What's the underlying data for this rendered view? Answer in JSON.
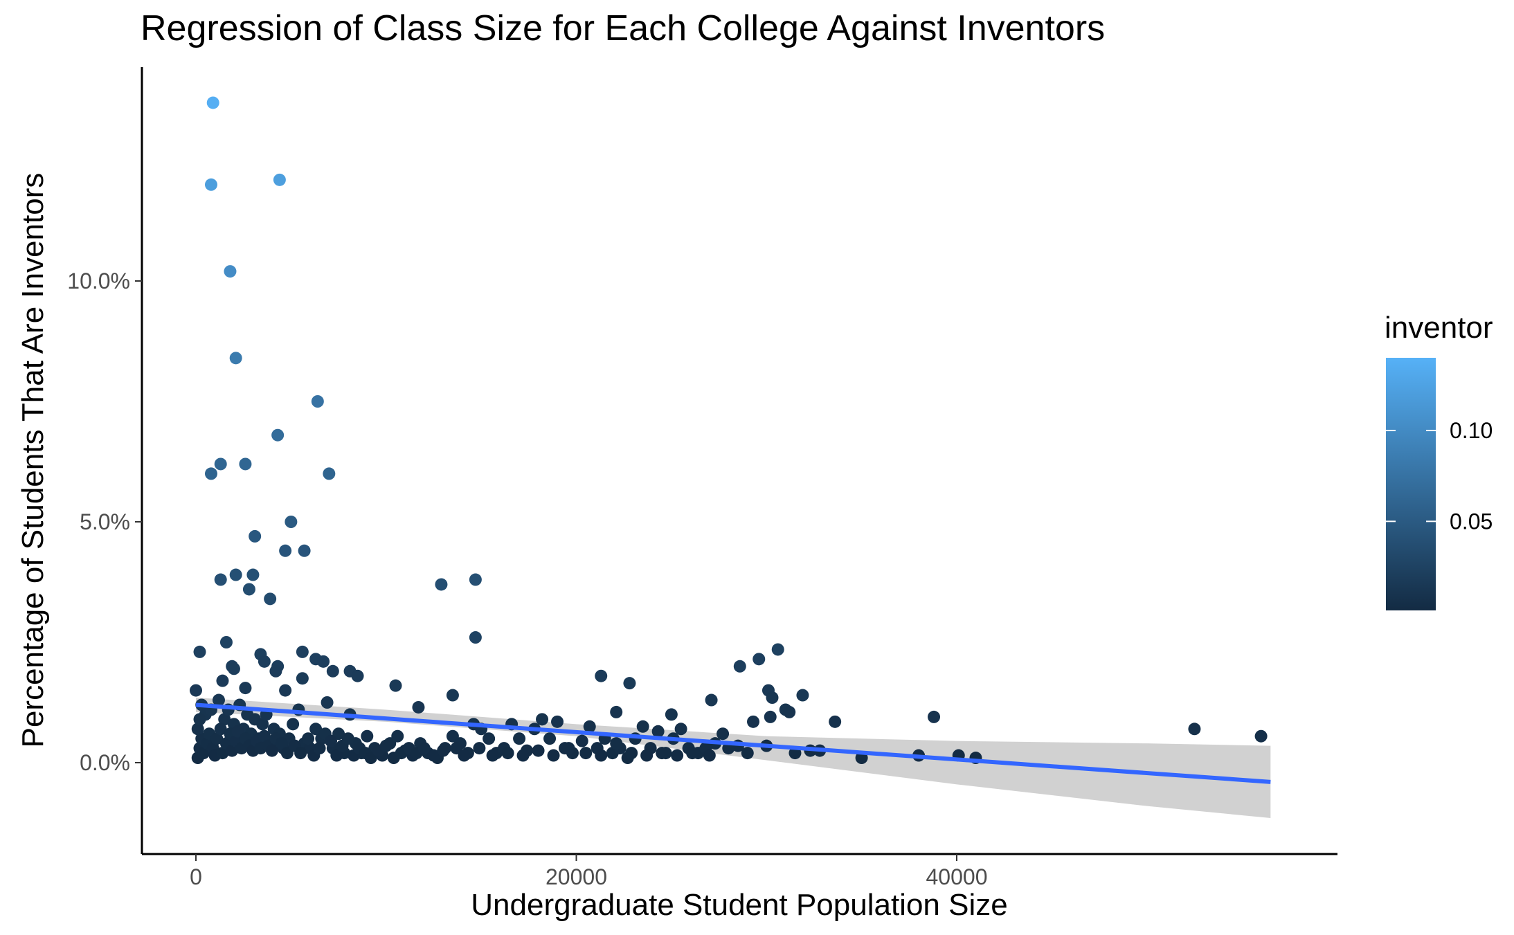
{
  "chart_data": {
    "type": "scatter",
    "title": "Regression of Class Size for Each College Against Inventors",
    "xlabel": "Undergraduate Student Population Size",
    "ylabel": "Percentage of Students That Are Inventors",
    "xlim": [
      -3000,
      59000
    ],
    "ylim": [
      -1.85,
      14.3
    ],
    "x_ticks": [
      {
        "value": 0,
        "label": "0"
      },
      {
        "value": 20000,
        "label": "20000"
      },
      {
        "value": 40000,
        "label": "40000"
      }
    ],
    "y_ticks": [
      {
        "value": 0,
        "label": "0.0%"
      },
      {
        "value": 5,
        "label": "5.0%"
      },
      {
        "value": 10,
        "label": "10.0%"
      }
    ],
    "grid": false,
    "legend": {
      "title": "inventor",
      "placement": "right",
      "type": "continuous colorbar",
      "range": [
        0.001,
        0.14
      ],
      "ticks": [
        {
          "value": 0.05,
          "label": "0.05"
        },
        {
          "value": 0.1,
          "label": "0.10"
        }
      ],
      "color_low": "#132B43",
      "color_high": "#56B1F7"
    },
    "point_color_by": "y (as fraction = inventor)",
    "regression": {
      "method": "lm",
      "color": "#3366FF",
      "ribbon_color": "#cccccc",
      "line": [
        [
          0,
          1.2
        ],
        [
          56500,
          -0.4
        ]
      ],
      "ribbon_lower": [
        [
          0,
          1.05
        ],
        [
          10000,
          0.85
        ],
        [
          20000,
          0.55
        ],
        [
          30000,
          0.05
        ],
        [
          40000,
          -0.45
        ],
        [
          50000,
          -0.9
        ],
        [
          56500,
          -1.15
        ]
      ],
      "ribbon_upper": [
        [
          0,
          1.35
        ],
        [
          10000,
          1.1
        ],
        [
          20000,
          0.8
        ],
        [
          30000,
          0.55
        ],
        [
          40000,
          0.45
        ],
        [
          50000,
          0.4
        ],
        [
          56500,
          0.35
        ]
      ]
    },
    "points": [
      [
        900,
        13.7
      ],
      [
        800,
        12.0
      ],
      [
        4400,
        12.1
      ],
      [
        1800,
        10.2
      ],
      [
        2100,
        8.4
      ],
      [
        6400,
        7.5
      ],
      [
        4300,
        6.8
      ],
      [
        1300,
        6.2
      ],
      [
        800,
        6.0
      ],
      [
        2600,
        6.2
      ],
      [
        7000,
        6.0
      ],
      [
        5000,
        5.0
      ],
      [
        3100,
        4.7
      ],
      [
        4700,
        4.4
      ],
      [
        5700,
        4.4
      ],
      [
        2100,
        3.9
      ],
      [
        3000,
        3.9
      ],
      [
        1300,
        3.8
      ],
      [
        2800,
        3.6
      ],
      [
        3900,
        3.4
      ],
      [
        12900,
        3.7
      ],
      [
        14700,
        3.8
      ],
      [
        14700,
        2.6
      ],
      [
        200,
        2.3
      ],
      [
        1600,
        2.5
      ],
      [
        3400,
        2.25
      ],
      [
        5600,
        2.3
      ],
      [
        6300,
        2.15
      ],
      [
        6700,
        2.1
      ],
      [
        4300,
        2.0
      ],
      [
        1900,
        2.0
      ],
      [
        2000,
        1.95
      ],
      [
        3600,
        2.1
      ],
      [
        4200,
        1.9
      ],
      [
        5600,
        1.75
      ],
      [
        7200,
        1.9
      ],
      [
        8100,
        1.9
      ],
      [
        8500,
        1.8
      ],
      [
        10500,
        1.6
      ],
      [
        4700,
        1.5
      ],
      [
        13500,
        1.4
      ],
      [
        11700,
        1.15
      ],
      [
        2600,
        1.55
      ],
      [
        1400,
        1.7
      ],
      [
        21300,
        1.8
      ],
      [
        22800,
        1.65
      ],
      [
        28600,
        2.0
      ],
      [
        29600,
        2.15
      ],
      [
        30600,
        2.35
      ],
      [
        30100,
        1.5
      ],
      [
        30300,
        1.35
      ],
      [
        31900,
        1.4
      ],
      [
        27100,
        1.3
      ],
      [
        31000,
        1.1
      ],
      [
        31200,
        1.05
      ],
      [
        22100,
        1.05
      ],
      [
        25000,
        1.0
      ],
      [
        30200,
        0.95
      ],
      [
        29300,
        0.85
      ],
      [
        33600,
        0.85
      ],
      [
        38800,
        0.95
      ],
      [
        52500,
        0.7
      ],
      [
        56000,
        0.55
      ],
      [
        0,
        1.5
      ],
      [
        300,
        1.2
      ],
      [
        500,
        1.0
      ],
      [
        800,
        1.1
      ],
      [
        1200,
        1.3
      ],
      [
        1500,
        0.9
      ],
      [
        1700,
        1.1
      ],
      [
        2000,
        0.8
      ],
      [
        2300,
        1.2
      ],
      [
        2500,
        0.7
      ],
      [
        2700,
        1.0
      ],
      [
        2900,
        0.6
      ],
      [
        3100,
        0.9
      ],
      [
        3300,
        0.5
      ],
      [
        3500,
        0.8
      ],
      [
        3700,
        1.0
      ],
      [
        3900,
        0.4
      ],
      [
        4100,
        0.7
      ],
      [
        4400,
        0.6
      ],
      [
        4600,
        0.3
      ],
      [
        4900,
        0.5
      ],
      [
        5100,
        0.8
      ],
      [
        5400,
        1.1
      ],
      [
        5700,
        0.4
      ],
      [
        6000,
        0.3
      ],
      [
        6300,
        0.7
      ],
      [
        6600,
        0.5
      ],
      [
        6900,
        1.25
      ],
      [
        7200,
        0.3
      ],
      [
        7500,
        0.6
      ],
      [
        7800,
        0.2
      ],
      [
        8100,
        1.0
      ],
      [
        8400,
        0.4
      ],
      [
        8700,
        0.2
      ],
      [
        9000,
        0.55
      ],
      [
        9400,
        0.3
      ],
      [
        9800,
        0.15
      ],
      [
        10200,
        0.4
      ],
      [
        10600,
        0.55
      ],
      [
        11000,
        0.25
      ],
      [
        11400,
        0.15
      ],
      [
        11800,
        0.4
      ],
      [
        12200,
        0.2
      ],
      [
        12700,
        0.1
      ],
      [
        13100,
        0.3
      ],
      [
        13500,
        0.55
      ],
      [
        13900,
        0.4
      ],
      [
        14300,
        0.2
      ],
      [
        14600,
        0.8
      ],
      [
        15000,
        0.7
      ],
      [
        15400,
        0.5
      ],
      [
        15800,
        0.2
      ],
      [
        16200,
        0.3
      ],
      [
        16600,
        0.8
      ],
      [
        17000,
        0.5
      ],
      [
        17400,
        0.25
      ],
      [
        17800,
        0.7
      ],
      [
        18200,
        0.9
      ],
      [
        18600,
        0.5
      ],
      [
        19000,
        0.85
      ],
      [
        19400,
        0.3
      ],
      [
        19800,
        0.2
      ],
      [
        20300,
        0.45
      ],
      [
        20700,
        0.75
      ],
      [
        21100,
        0.3
      ],
      [
        21500,
        0.5
      ],
      [
        21900,
        0.2
      ],
      [
        22300,
        0.3
      ],
      [
        22700,
        0.1
      ],
      [
        23100,
        0.5
      ],
      [
        23500,
        0.75
      ],
      [
        23900,
        0.3
      ],
      [
        24300,
        0.65
      ],
      [
        24700,
        0.2
      ],
      [
        25100,
        0.5
      ],
      [
        25500,
        0.7
      ],
      [
        25900,
        0.3
      ],
      [
        26400,
        0.2
      ],
      [
        26800,
        0.3
      ],
      [
        27300,
        0.4
      ],
      [
        27700,
        0.6
      ],
      [
        28500,
        0.35
      ],
      [
        29000,
        0.2
      ],
      [
        30000,
        0.35
      ],
      [
        31500,
        0.2
      ],
      [
        32300,
        0.25
      ],
      [
        32800,
        0.25
      ],
      [
        35000,
        0.1
      ],
      [
        38000,
        0.15
      ],
      [
        40100,
        0.15
      ],
      [
        41000,
        0.1
      ],
      [
        100,
        0.1
      ],
      [
        200,
        0.3
      ],
      [
        300,
        0.5
      ],
      [
        100,
        0.7
      ],
      [
        200,
        0.9
      ],
      [
        400,
        0.2
      ],
      [
        600,
        0.4
      ],
      [
        700,
        0.6
      ],
      [
        900,
        0.3
      ],
      [
        1000,
        0.15
      ],
      [
        1100,
        0.5
      ],
      [
        1300,
        0.7
      ],
      [
        1400,
        0.2
      ],
      [
        1600,
        0.4
      ],
      [
        1800,
        0.6
      ],
      [
        1900,
        0.25
      ],
      [
        2100,
        0.45
      ],
      [
        2200,
        0.65
      ],
      [
        2400,
        0.3
      ],
      [
        2600,
        0.5
      ],
      [
        2800,
        0.35
      ],
      [
        3000,
        0.25
      ],
      [
        3200,
        0.45
      ],
      [
        3400,
        0.3
      ],
      [
        3600,
        0.55
      ],
      [
        3800,
        0.35
      ],
      [
        4000,
        0.25
      ],
      [
        4200,
        0.5
      ],
      [
        4500,
        0.4
      ],
      [
        4800,
        0.2
      ],
      [
        5200,
        0.35
      ],
      [
        5500,
        0.2
      ],
      [
        5900,
        0.5
      ],
      [
        6200,
        0.15
      ],
      [
        6500,
        0.3
      ],
      [
        6800,
        0.6
      ],
      [
        7100,
        0.45
      ],
      [
        7400,
        0.15
      ],
      [
        7700,
        0.35
      ],
      [
        8000,
        0.5
      ],
      [
        8300,
        0.15
      ],
      [
        8600,
        0.3
      ],
      [
        8900,
        0.2
      ],
      [
        9200,
        0.1
      ],
      [
        9600,
        0.25
      ],
      [
        10000,
        0.35
      ],
      [
        10400,
        0.1
      ],
      [
        10800,
        0.2
      ],
      [
        11200,
        0.3
      ],
      [
        11600,
        0.2
      ],
      [
        12000,
        0.3
      ],
      [
        12500,
        0.15
      ],
      [
        13000,
        0.25
      ],
      [
        13700,
        0.3
      ],
      [
        14100,
        0.15
      ],
      [
        14900,
        0.3
      ],
      [
        15600,
        0.15
      ],
      [
        16400,
        0.2
      ],
      [
        17200,
        0.15
      ],
      [
        18000,
        0.25
      ],
      [
        18800,
        0.15
      ],
      [
        19600,
        0.3
      ],
      [
        20500,
        0.2
      ],
      [
        21300,
        0.15
      ],
      [
        22100,
        0.4
      ],
      [
        22900,
        0.2
      ],
      [
        23700,
        0.15
      ],
      [
        24500,
        0.2
      ],
      [
        25300,
        0.15
      ],
      [
        26100,
        0.2
      ],
      [
        27000,
        0.15
      ],
      [
        28000,
        0.3
      ]
    ]
  }
}
